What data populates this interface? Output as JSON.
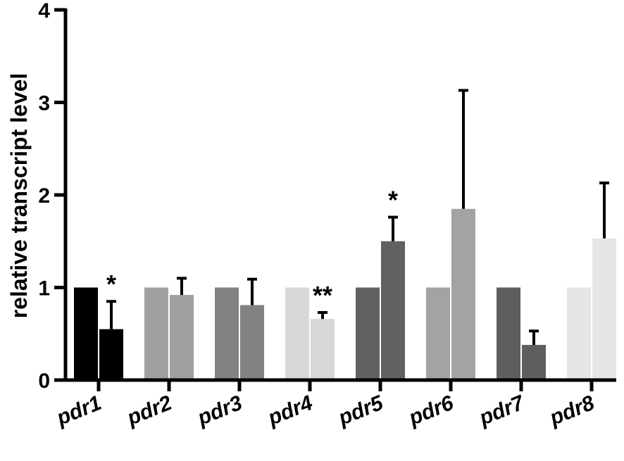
{
  "chart_data": {
    "type": "bar",
    "title": "",
    "xlabel": "",
    "ylabel": "relative transcript level",
    "ylim": [
      0,
      4
    ],
    "yticks": [
      0,
      1,
      2,
      3,
      4
    ],
    "grid": false,
    "categories": [
      "pdr1",
      "pdr2",
      "pdr3",
      "pdr4",
      "pdr5",
      "pdr6",
      "pdr7",
      "pdr8"
    ],
    "colors": [
      "#000000",
      "#a0a0a3",
      "#828282",
      "#d8d8d8",
      "#616161",
      "#a3a3a6",
      "#5e5e5e",
      "#e6e6e6"
    ],
    "series": [
      {
        "values": [
          1.0,
          1.0,
          1.0,
          1.0,
          1.0,
          1.0,
          1.0,
          1.0
        ],
        "errors": [
          null,
          null,
          null,
          null,
          null,
          null,
          null,
          null
        ]
      },
      {
        "values": [
          0.55,
          0.92,
          0.81,
          0.66,
          1.5,
          1.85,
          0.38,
          1.53
        ],
        "errors": [
          0.3,
          0.18,
          0.28,
          0.07,
          0.26,
          1.28,
          0.15,
          0.6
        ]
      }
    ],
    "annotations": [
      {
        "category": "pdr1",
        "text": "*"
      },
      {
        "category": "pdr4",
        "text": "**"
      },
      {
        "category": "pdr5",
        "text": "*"
      }
    ]
  }
}
